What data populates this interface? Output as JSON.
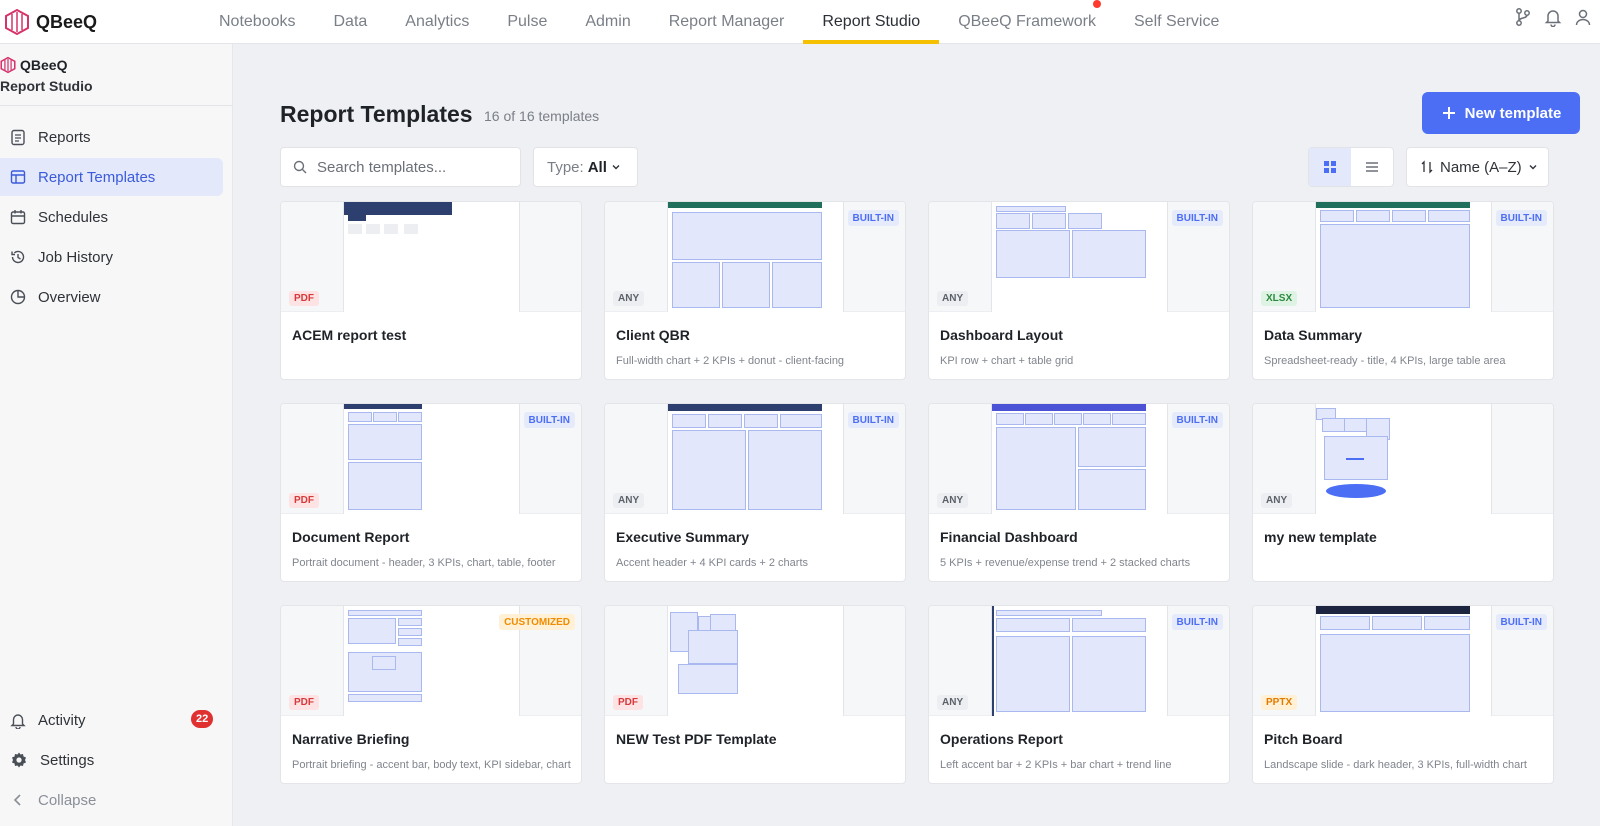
{
  "app": {
    "brand": "QBeeQ",
    "nav_tabs": [
      "Notebooks",
      "Data",
      "Analytics",
      "Pulse",
      "Admin",
      "Report Manager",
      "Report Studio",
      "QBeeQ Framework",
      "Self Service"
    ],
    "active_tab": "Report Studio",
    "nav_icons": [
      "branch-icon",
      "bell-icon",
      "user-icon"
    ]
  },
  "sidebar": {
    "brand": "QBeeQ",
    "subtitle": "Report Studio",
    "items": [
      {
        "label": "Reports",
        "icon": "document-icon"
      },
      {
        "label": "Report Templates",
        "icon": "template-icon",
        "active": true
      },
      {
        "label": "Schedules",
        "icon": "calendar-icon"
      },
      {
        "label": "Job History",
        "icon": "history-icon"
      },
      {
        "label": "Overview",
        "icon": "pie-icon"
      }
    ],
    "activity_label": "Activity",
    "activity_count": "22",
    "settings_label": "Settings",
    "collapse_label": "Collapse"
  },
  "page": {
    "title": "Report Templates",
    "count": "16 of 16 templates",
    "new_button": "New template",
    "search_placeholder": "Search templates...",
    "type_label": "Type:",
    "type_value": "All",
    "sort_value": "Name (A–Z)"
  },
  "colors": {
    "accent": "#4c6ef5",
    "active_tab_underline": "#f5c000",
    "badge_red": "#e03131"
  },
  "templates": [
    {
      "name": "ACEM report test",
      "desc": "",
      "format": "PDF",
      "tag": ""
    },
    {
      "name": "Client QBR",
      "desc": "Full-width chart + 2 KPIs + donut - client-facing",
      "format": "ANY",
      "tag": "BUILT-IN"
    },
    {
      "name": "Dashboard Layout",
      "desc": "KPI row + chart + table grid",
      "format": "ANY",
      "tag": "BUILT-IN"
    },
    {
      "name": "Data Summary",
      "desc": "Spreadsheet-ready - title, 4 KPIs, large table area",
      "format": "XLSX",
      "tag": "BUILT-IN"
    },
    {
      "name": "Document Report",
      "desc": "Portrait document - header, 3 KPIs, chart, table, footer",
      "format": "PDF",
      "tag": "BUILT-IN"
    },
    {
      "name": "Executive Summary",
      "desc": "Accent header + 4 KPI cards + 2 charts",
      "format": "ANY",
      "tag": "BUILT-IN"
    },
    {
      "name": "Financial Dashboard",
      "desc": "5 KPIs + revenue/expense trend + 2 stacked charts",
      "format": "ANY",
      "tag": "BUILT-IN"
    },
    {
      "name": "my new template",
      "desc": "",
      "format": "ANY",
      "tag": ""
    },
    {
      "name": "Narrative Briefing",
      "desc": "Portrait briefing - accent bar, body text, KPI sidebar, chart",
      "format": "PDF",
      "tag": "CUSTOMIZED"
    },
    {
      "name": "NEW Test PDF Template",
      "desc": "",
      "format": "PDF",
      "tag": ""
    },
    {
      "name": "Operations Report",
      "desc": "Left accent bar + 2 KPIs + bar chart + trend line",
      "format": "ANY",
      "tag": "BUILT-IN"
    },
    {
      "name": "Pitch Board",
      "desc": "Landscape slide - dark header, 3 KPIs, full-width chart",
      "format": "PPTX",
      "tag": "BUILT-IN"
    }
  ]
}
